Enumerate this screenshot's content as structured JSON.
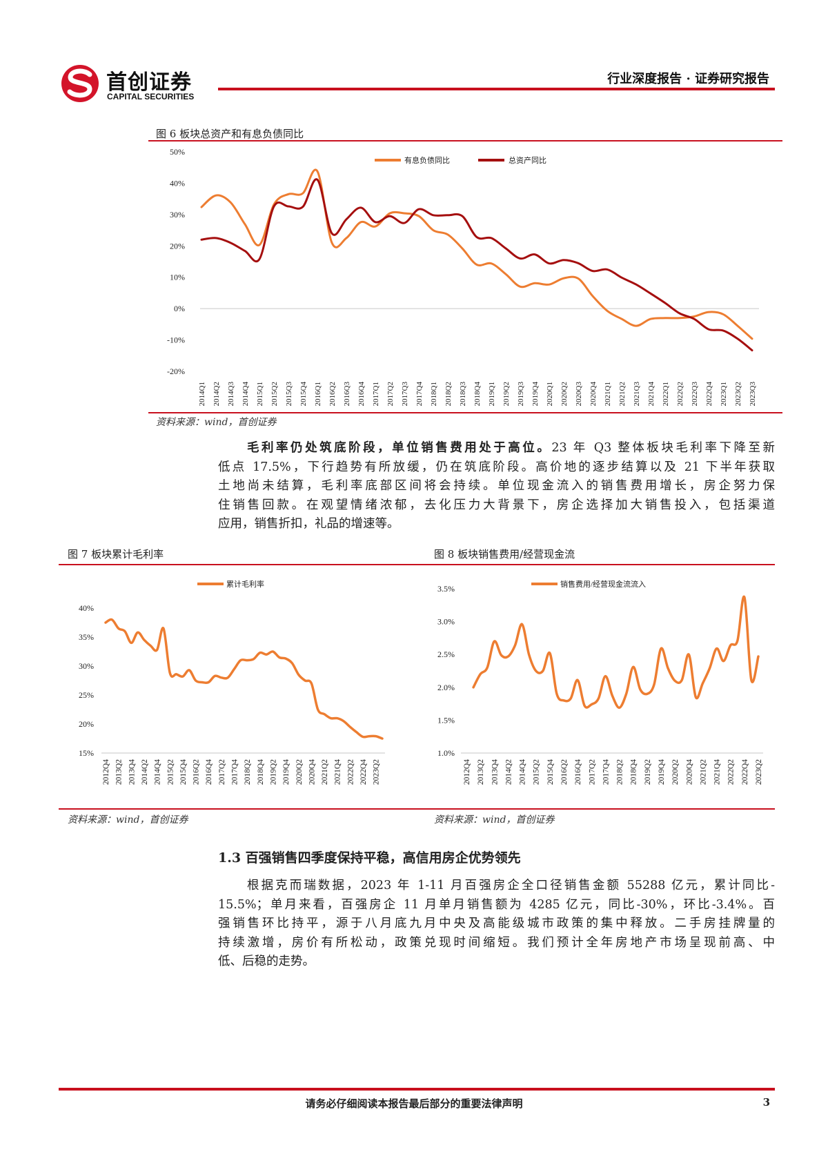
{
  "header": {
    "logo_cn": "首创证券",
    "logo_en": "CAPITAL SECURITIES",
    "report_type": "行业深度报告 · 证券研究报告",
    "brand_color": "#c8101e"
  },
  "figure6": {
    "title": "图 6  板块总资产和有息负债同比",
    "source": "资料来源：wind，首创证券"
  },
  "paragraph1": {
    "lead": "毛利率仍处筑底阶段，单位销售费用处于高位。",
    "lines": [
      "23 年 Q3 整体板块毛利率下降至新",
      "低点 17.5%，下行趋势有所放缓，仍在筑底阶段。高价地的逐步结算以及 21 下半年获取",
      "土地尚未结算，毛利率底部区间将会持续。单位现金流入的销售费用增长，房企努力保",
      "住销售回款。在观望情绪浓郁，去化压力大背景下，房企选择加大销售投入，包括渠道",
      "应用，销售折扣，礼品的增速等。"
    ]
  },
  "figure7": {
    "title": "图 7  板块累计毛利率",
    "source": "资料来源：wind，首创证券"
  },
  "figure8": {
    "title": "图 8  板块销售费用/经营现金流",
    "source": "资料来源：wind，首创证券"
  },
  "section": {
    "heading": "1.3  百强销售四季度保持平稳，高信用房企优势领先",
    "lines": [
      "根据克而瑞数据，2023 年 1-11 月百强房企全口径销售金额 55288 亿元，累计同比-",
      "15.5%；单月来看，百强房企 11 月单月销售额为 4285 亿元，同比-30%，环比-3.4%。百",
      "强销售环比持平，源于八月底九月中央及高能级城市政策的集中释放。二手房挂牌量的",
      "持续激增，房价有所松动，政策兑现时间缩短。我们预计全年房地产市场呈现前高、中",
      "低、后稳的走势。"
    ]
  },
  "footer": {
    "disclaimer": "请务必仔细阅读本报告最后部分的重要法律声明",
    "page_number": "3"
  },
  "chart_data": [
    {
      "type": "line",
      "x": [
        "2014Q1",
        "2014Q2",
        "2014Q3",
        "2014Q4",
        "2015Q1",
        "2015Q2",
        "2015Q3",
        "2015Q4",
        "2016Q1",
        "2016Q2",
        "2016Q3",
        "2016Q4",
        "2017Q1",
        "2017Q2",
        "2017Q3",
        "2017Q4",
        "2018Q1",
        "2018Q2",
        "2018Q3",
        "2018Q4",
        "2019Q1",
        "2019Q2",
        "2019Q3",
        "2019Q4",
        "2020Q1",
        "2020Q2",
        "2020Q3",
        "2020Q4",
        "2021Q1",
        "2021Q2",
        "2021Q3",
        "2021Q4",
        "2022Q1",
        "2022Q2",
        "2022Q3",
        "2022Q4",
        "2023Q1",
        "2023Q2",
        "2023Q3"
      ],
      "yticks": [
        "50%",
        "40%",
        "30%",
        "20%",
        "10%",
        "0%",
        "-10%",
        "-20%"
      ],
      "ylim": [
        -20,
        50
      ],
      "unit": "%",
      "legend": "top-center",
      "series": [
        {
          "name": "有息负债同比",
          "color": "#ed7d31",
          "values": [
            32.4,
            36.1,
            33.9,
            26.9,
            20.3,
            33.2,
            36.5,
            36.8,
            43.8,
            21,
            22.5,
            27.6,
            26.2,
            30.4,
            30.4,
            29.5,
            25,
            23.6,
            19.2,
            14,
            14.4,
            11,
            7,
            8.1,
            7.7,
            9.7,
            9.6,
            4,
            -0.7,
            -3.3,
            -5.5,
            -3.3,
            -3,
            -3,
            -2.5,
            -1.1,
            -1.8,
            -5.5,
            -9.6
          ]
        },
        {
          "name": "总资产同比",
          "color": "#a50f0f",
          "values": [
            22,
            22.5,
            21,
            18.4,
            15.8,
            32.6,
            32.6,
            32.5,
            41.1,
            24,
            28.5,
            32.2,
            27.6,
            29.5,
            27.3,
            31.7,
            29.8,
            29.8,
            29.5,
            22.8,
            22.5,
            19.2,
            16,
            17.3,
            14.4,
            15.5,
            14.5,
            12,
            12.5,
            9.9,
            7.7,
            4.8,
            1.8,
            -1.5,
            -3.3,
            -6.6,
            -7,
            -9.6,
            -13.3
          ]
        }
      ]
    },
    {
      "type": "line",
      "x": [
        "2012Q4",
        "2013Q1",
        "2013Q2",
        "2013Q3",
        "2013Q4",
        "2014Q1",
        "2014Q2",
        "2014Q3",
        "2014Q4",
        "2015Q1",
        "2015Q2",
        "2015Q3",
        "2015Q4",
        "2016Q1",
        "2016Q2",
        "2016Q3",
        "2016Q4",
        "2017Q1",
        "2017Q2",
        "2017Q3",
        "2017Q4",
        "2018Q1",
        "2018Q2",
        "2018Q3",
        "2018Q4",
        "2019Q1",
        "2019Q2",
        "2019Q3",
        "2019Q4",
        "2020Q1",
        "2020Q2",
        "2020Q3",
        "2020Q4",
        "2021Q1",
        "2021Q2",
        "2021Q3",
        "2021Q4",
        "2022Q1",
        "2022Q2",
        "2022Q3",
        "2022Q4",
        "2023Q1",
        "2023Q2",
        "2023Q3"
      ],
      "xtick_labels": [
        "2012Q4",
        "2013Q2",
        "2013Q4",
        "2014Q2",
        "2014Q4",
        "2015Q2",
        "2015Q4",
        "2016Q2",
        "2016Q4",
        "2017Q2",
        "2017Q4",
        "2018Q2",
        "2018Q4",
        "2019Q2",
        "2019Q4",
        "2020Q2",
        "2020Q4",
        "2021Q2",
        "2021Q4",
        "2022Q2",
        "2022Q4",
        "2023Q2"
      ],
      "yticks": [
        "40%",
        "35%",
        "30%",
        "25%",
        "20%",
        "15%"
      ],
      "ylim": [
        15,
        40
      ],
      "unit": "%",
      "legend": "top-center",
      "series": [
        {
          "name": "累计毛利率",
          "color": "#ed7d31",
          "values": [
            37.5,
            38,
            36.5,
            36,
            34,
            35.8,
            34.5,
            33.5,
            32.8,
            36.5,
            28.8,
            28.6,
            28.2,
            29.3,
            27.5,
            27.2,
            27.2,
            28.3,
            28,
            28,
            29.5,
            31,
            31,
            31.2,
            32.3,
            32,
            32.5,
            31.5,
            31.3,
            30.5,
            28.5,
            27.5,
            27,
            22.5,
            21.7,
            21,
            21,
            20.5,
            19.5,
            18.6,
            17.8,
            17.9,
            17.9,
            17.5
          ]
        }
      ]
    },
    {
      "type": "line",
      "x": [
        "2012Q4",
        "2013Q1",
        "2013Q2",
        "2013Q3",
        "2013Q4",
        "2014Q1",
        "2014Q2",
        "2014Q3",
        "2014Q4",
        "2015Q1",
        "2015Q2",
        "2015Q3",
        "2015Q4",
        "2016Q1",
        "2016Q2",
        "2016Q3",
        "2016Q4",
        "2017Q1",
        "2017Q2",
        "2017Q3",
        "2017Q4",
        "2018Q1",
        "2018Q2",
        "2018Q3",
        "2018Q4",
        "2019Q1",
        "2019Q2",
        "2019Q3",
        "2019Q4",
        "2020Q1",
        "2020Q2",
        "2020Q3",
        "2020Q4",
        "2021Q1",
        "2021Q2",
        "2021Q3",
        "2021Q4",
        "2022Q1",
        "2022Q2",
        "2022Q3",
        "2022Q4",
        "2023Q1",
        "2023Q2"
      ],
      "xtick_labels": [
        "2012Q4",
        "2013Q2",
        "2013Q4",
        "2014Q2",
        "2014Q4",
        "2015Q2",
        "2015Q4",
        "2016Q2",
        "2016Q4",
        "2017Q2",
        "2017Q4",
        "2018Q2",
        "2018Q4",
        "2019Q2",
        "2019Q4",
        "2020Q2",
        "2020Q4",
        "2021Q2",
        "2021Q4",
        "2022Q2",
        "2022Q4",
        "2023Q2"
      ],
      "yticks": [
        "3.5%",
        "3.0%",
        "2.5%",
        "2.0%",
        "1.5%",
        "1.0%"
      ],
      "ylim": [
        1.0,
        3.5
      ],
      "unit": "%",
      "legend": "top-center",
      "series": [
        {
          "name": "销售费用/经营现金流流入",
          "color": "#ed7d31",
          "values": [
            null,
            2.0,
            2.2,
            2.3,
            2.7,
            2.49,
            2.47,
            2.64,
            2.96,
            2.5,
            2.25,
            2.25,
            2.52,
            1.9,
            1.8,
            1.83,
            2.11,
            1.72,
            1.74,
            1.83,
            2.17,
            1.87,
            1.69,
            1.9,
            2.31,
            1.97,
            1.9,
            2.04,
            2.59,
            2.29,
            2.1,
            2.11,
            2.5,
            1.85,
            2.06,
            2.29,
            2.59,
            2.4,
            2.64,
            2.71,
            3.37,
            2.11,
            2.47
          ]
        }
      ]
    }
  ]
}
